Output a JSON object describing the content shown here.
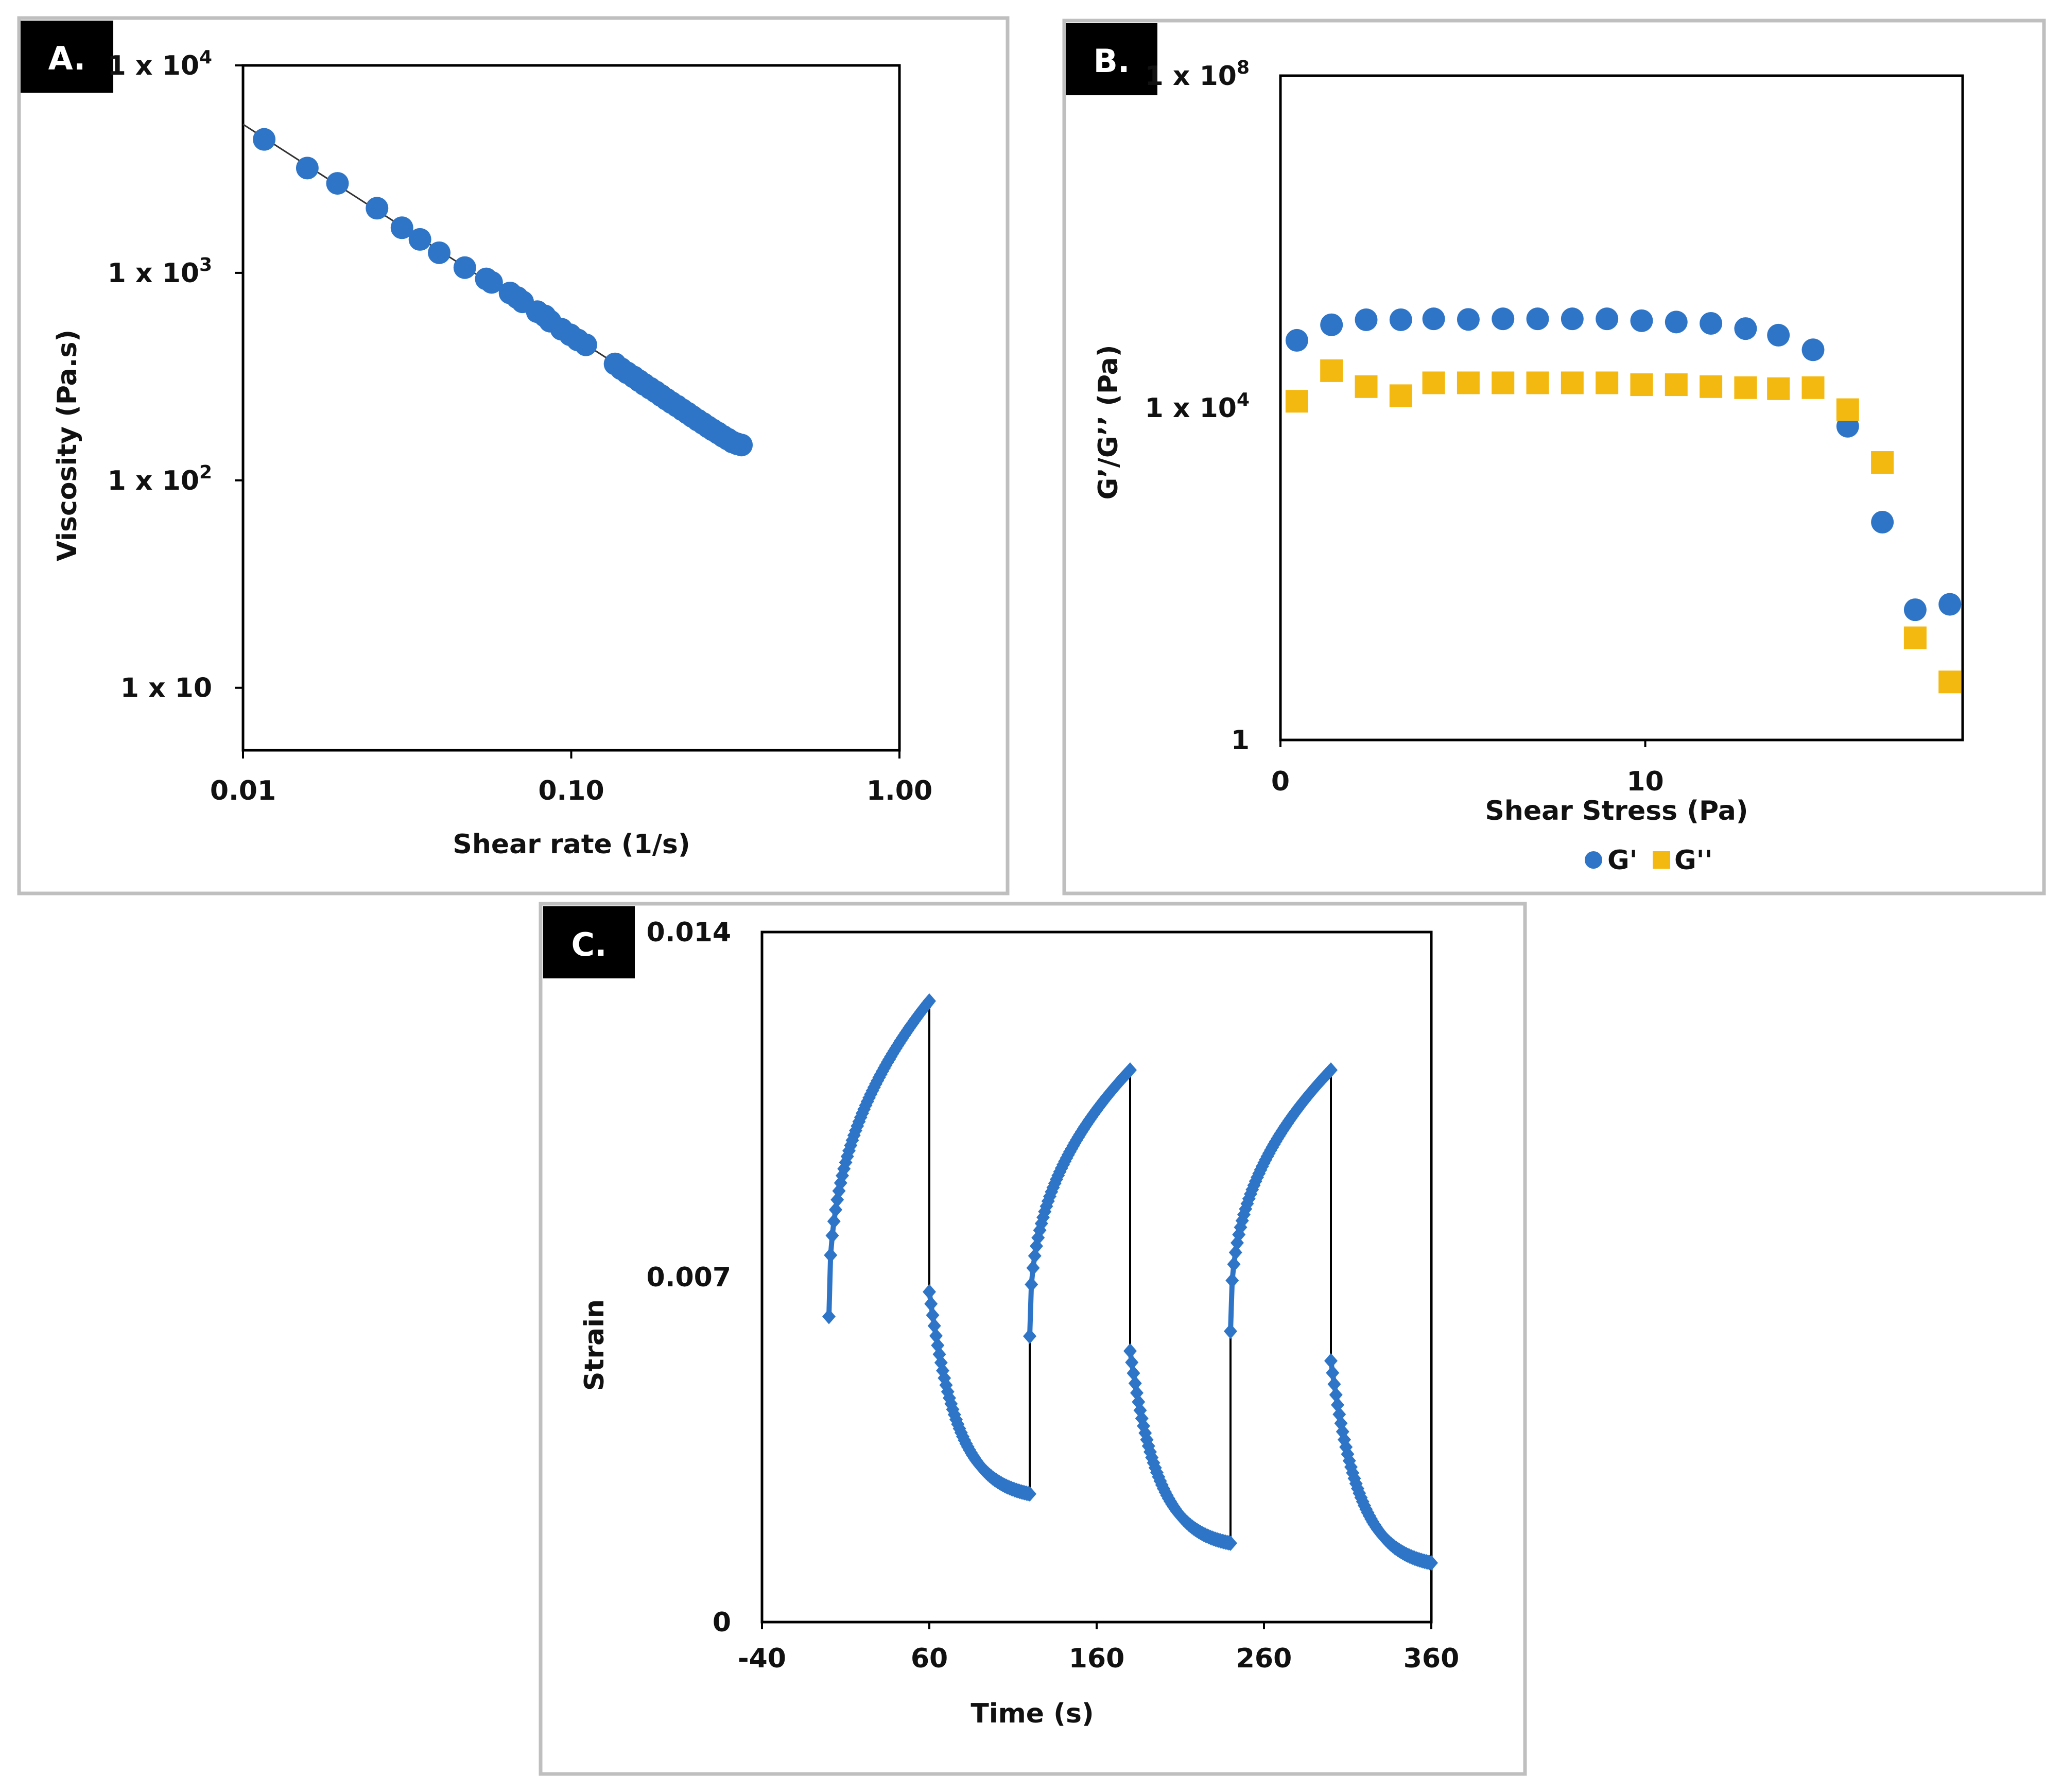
{
  "chart_data": [
    {
      "id": "A",
      "panel_label": "A.",
      "type": "scatter",
      "title": "",
      "xlabel": "Shear rate (1/s)",
      "ylabel": "Viscosity (Pa.s)",
      "x_scale": "log",
      "y_scale": "log",
      "xlim": [
        0.01,
        1.0
      ],
      "ylim": [
        5,
        10000
      ],
      "x_ticks": [
        {
          "value": 0.01,
          "label": "0.01"
        },
        {
          "value": 0.1,
          "label": "0.10"
        },
        {
          "value": 1.0,
          "label": "1.00"
        }
      ],
      "y_ticks": [
        {
          "value": 10000,
          "base": "1 x 10",
          "exp": "4"
        },
        {
          "value": 1000,
          "base": "1 x 10",
          "exp": "3"
        },
        {
          "value": 100,
          "base": "1 x 10",
          "exp": "2"
        },
        {
          "value": 10,
          "base": "1 x 10",
          "exp": ""
        }
      ],
      "color": "#2e75c8",
      "trendline": {
        "x": [
          0.01,
          0.35
        ],
        "y": [
          5200,
          140
        ]
      },
      "series": [
        {
          "name": "Viscosity",
          "x": [
            0.0116,
            0.0157,
            0.0194,
            0.0256,
            0.0305,
            0.0346,
            0.0396,
            0.0474,
            0.0551,
            0.0572,
            0.0651,
            0.0685,
            0.0711,
            0.0788,
            0.0831,
            0.0862,
            0.0934,
            0.0993,
            0.1047,
            0.1108,
            0.136,
            0.142,
            0.148,
            0.155,
            0.161,
            0.167,
            0.174,
            0.181,
            0.188,
            0.195,
            0.202,
            0.21,
            0.218,
            0.226,
            0.234,
            0.243,
            0.252,
            0.261,
            0.27,
            0.28,
            0.29,
            0.3,
            0.31,
            0.32,
            0.33
          ],
          "y": [
            4400,
            3200,
            2700,
            2050,
            1650,
            1450,
            1250,
            1060,
            935,
            900,
            800,
            760,
            725,
            650,
            620,
            585,
            535,
            503,
            475,
            450,
            364,
            345,
            330,
            315,
            302,
            290,
            278,
            267,
            256,
            246,
            237,
            228,
            219,
            211,
            203,
            195,
            188,
            181,
            175,
            169,
            163,
            158,
            153,
            150,
            148
          ]
        }
      ]
    },
    {
      "id": "B",
      "panel_label": "B.",
      "type": "scatter",
      "title": "",
      "xlabel": "Shear Stress (Pa)",
      "ylabel": "G’/G’’ (Pa)",
      "x_scale": "linear",
      "y_scale": "log",
      "xlim": [
        0,
        18.7
      ],
      "ylim": [
        1,
        100000000
      ],
      "x_ticks": [
        {
          "value": 0,
          "label": "0"
        },
        {
          "value": 10,
          "label": "10"
        }
      ],
      "y_ticks": [
        {
          "value": 100000000,
          "base": "1 x 10",
          "exp": "8"
        },
        {
          "value": 10000,
          "base": "1 x 10",
          "exp": "4"
        },
        {
          "value": 1,
          "base": "1",
          "exp": ""
        }
      ],
      "legend_position": "bottom",
      "series": [
        {
          "name": "G'",
          "marker": "circle",
          "color": "#2e75c8",
          "x": [
            0.45,
            1.4,
            2.35,
            3.3,
            4.2,
            5.15,
            6.1,
            7.05,
            8.0,
            8.95,
            9.9,
            10.85,
            11.8,
            12.75,
            13.65,
            14.6,
            15.55,
            16.5,
            17.4,
            18.35
          ],
          "y": [
            65000,
            100000,
            115000,
            115000,
            118000,
            116000,
            118000,
            118000,
            118000,
            118000,
            112000,
            108000,
            104000,
            90000,
            75000,
            50000,
            6000,
            420,
            37,
            43
          ]
        },
        {
          "name": "G''",
          "marker": "square",
          "color": "#f4b911",
          "x": [
            0.45,
            1.4,
            2.35,
            3.3,
            4.2,
            5.15,
            6.1,
            7.05,
            8.0,
            8.95,
            9.9,
            10.85,
            11.8,
            12.75,
            13.65,
            14.6,
            15.55,
            16.5,
            17.4,
            18.35
          ],
          "y": [
            12000,
            28000,
            18000,
            14000,
            20000,
            20000,
            20000,
            20000,
            20000,
            20000,
            19000,
            19000,
            18000,
            17500,
            17000,
            17500,
            9500,
            2200,
            17,
            5
          ]
        }
      ]
    },
    {
      "id": "C",
      "panel_label": "C.",
      "type": "line",
      "title": "",
      "xlabel": "Time (s)",
      "ylabel": "Strain",
      "xlim": [
        -40,
        360
      ],
      "ylim": [
        0,
        0.014
      ],
      "x_ticks": [
        {
          "value": -40,
          "label": "-40"
        },
        {
          "value": 60,
          "label": "60"
        },
        {
          "value": 160,
          "label": "160"
        },
        {
          "value": 260,
          "label": "260"
        },
        {
          "value": 360,
          "label": "360"
        }
      ],
      "y_ticks": [
        {
          "value": 0.014,
          "label": "0.014"
        },
        {
          "value": 0.007,
          "label": "0.007"
        },
        {
          "value": 0,
          "label": "0"
        }
      ],
      "color": "#2e75c8",
      "segments": [
        {
          "kind": "creep",
          "t_start": 0,
          "t_end": 60,
          "strain_start": 0.0062,
          "strain_end": 0.0126
        },
        {
          "kind": "recovery",
          "t_start": 60,
          "t_end": 120,
          "strain_start": 0.0067,
          "strain_end": 0.0026
        },
        {
          "kind": "creep",
          "t_start": 120,
          "t_end": 180,
          "strain_start": 0.0058,
          "strain_end": 0.0112
        },
        {
          "kind": "recovery",
          "t_start": 180,
          "t_end": 240,
          "strain_start": 0.0055,
          "strain_end": 0.0016
        },
        {
          "kind": "creep",
          "t_start": 240,
          "t_end": 300,
          "strain_start": 0.0059,
          "strain_end": 0.0112
        },
        {
          "kind": "recovery",
          "t_start": 300,
          "t_end": 360,
          "strain_start": 0.0053,
          "strain_end": 0.0012
        }
      ]
    }
  ]
}
